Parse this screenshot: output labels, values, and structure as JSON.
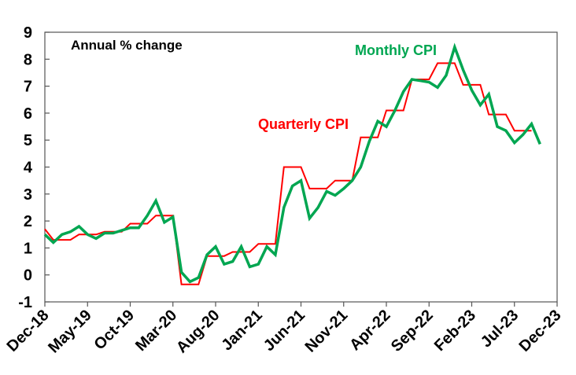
{
  "chart_data": {
    "type": "line",
    "title": "Annual % change",
    "xlabel": "",
    "ylabel": "Annual % change",
    "ylim": [
      -1,
      9
    ],
    "yticks": [
      "-1",
      "0",
      "1",
      "2",
      "3",
      "4",
      "5",
      "6",
      "7",
      "8",
      "9"
    ],
    "x_start": "Dec-18",
    "x_month_count": 60,
    "xtick_labels": [
      "Dec-18",
      "May-19",
      "Oct-19",
      "Mar-20",
      "Aug-20",
      "Jan-21",
      "Jun-21",
      "Nov-21",
      "Apr-22",
      "Sep-22",
      "Feb-23",
      "Jul-23",
      "Dec-23"
    ],
    "grid": false,
    "series": [
      {
        "name": "Monthly CPI",
        "color": "#00A651",
        "values": [
          1.5,
          1.2,
          1.5,
          1.6,
          1.8,
          1.5,
          1.35,
          1.55,
          1.55,
          1.65,
          1.75,
          1.75,
          2.2,
          2.75,
          1.95,
          2.15,
          0.1,
          -0.25,
          -0.1,
          0.75,
          1.05,
          0.4,
          0.5,
          1.05,
          0.3,
          0.4,
          1.05,
          0.75,
          2.5,
          3.3,
          3.5,
          2.1,
          2.5,
          3.1,
          2.95,
          3.2,
          3.5,
          4.0,
          4.95,
          5.7,
          5.5,
          6.1,
          6.8,
          7.25,
          7.2,
          7.15,
          6.95,
          7.4,
          8.45,
          7.6,
          6.85,
          6.3,
          6.7,
          5.5,
          5.35,
          4.9,
          5.2,
          5.6,
          4.85
        ]
      },
      {
        "name": "Quarterly CPI",
        "color": "#FF0000",
        "values": [
          1.7,
          1.3,
          1.3,
          1.3,
          1.5,
          1.5,
          1.5,
          1.6,
          1.6,
          1.6,
          1.9,
          1.9,
          1.9,
          2.2,
          2.2,
          2.2,
          -0.35,
          -0.35,
          -0.35,
          0.7,
          0.7,
          0.7,
          0.85,
          0.85,
          0.85,
          1.15,
          1.15,
          1.15,
          4.0,
          4.0,
          4.0,
          3.2,
          3.2,
          3.2,
          3.5,
          3.5,
          3.5,
          5.1,
          5.1,
          5.1,
          6.1,
          6.1,
          6.1,
          7.25,
          7.25,
          7.25,
          7.85,
          7.85,
          7.85,
          7.05,
          7.05,
          7.05,
          5.95,
          5.95,
          5.95,
          5.35,
          5.35,
          5.35
        ]
      }
    ],
    "annotations": [
      "Monthly CPI",
      "Quarterly CPI"
    ]
  }
}
